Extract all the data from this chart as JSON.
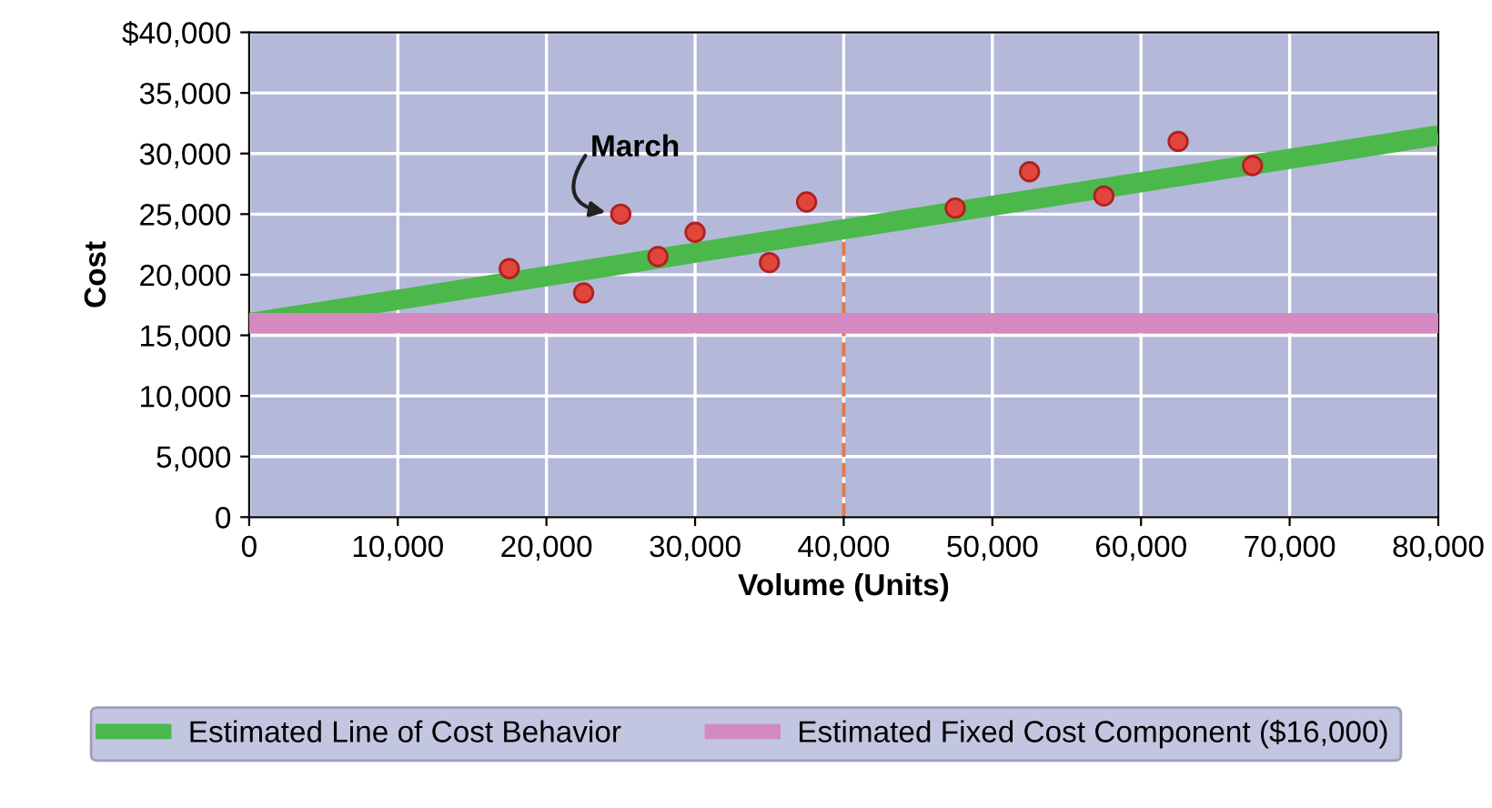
{
  "chart_data": {
    "type": "line",
    "xlabel": "Volume (Units)",
    "ylabel": "Cost",
    "xlim": [
      0,
      80000
    ],
    "ylim": [
      0,
      40000
    ],
    "xticks": [
      0,
      {
        "value": 10000,
        "label": "10,000"
      },
      {
        "value": 20000,
        "label": "20,000"
      },
      {
        "value": 30000,
        "label": "30,000"
      },
      {
        "value": 40000,
        "label": "40,000"
      },
      {
        "value": 50000,
        "label": "50,000"
      },
      {
        "value": 60000,
        "label": "60,000"
      },
      {
        "value": 70000,
        "label": "70,000"
      },
      {
        "value": 80000,
        "label": "80,000"
      }
    ],
    "yticks": [
      0,
      {
        "value": 5000,
        "label": "5,000"
      },
      {
        "value": 10000,
        "label": "10,000"
      },
      {
        "value": 15000,
        "label": "15,000"
      },
      {
        "value": 20000,
        "label": "20,000"
      },
      {
        "value": 25000,
        "label": "25,000"
      },
      {
        "value": 30000,
        "label": "30,000"
      },
      {
        "value": 35000,
        "label": "35,000"
      },
      {
        "value": 40000,
        "label": "$40,000"
      }
    ],
    "grid": true,
    "legend": "bottom",
    "series": [
      {
        "type": "scatter",
        "marker": "circle",
        "color": "#e0463c",
        "x": [
          17500,
          22500,
          25000,
          27500,
          30000,
          35000,
          37500,
          47500,
          52500,
          57500,
          62500,
          67500
        ],
        "values": [
          20500,
          18500,
          25000,
          21500,
          23500,
          21000,
          26000,
          25500,
          28500,
          26500,
          31000,
          29000
        ]
      },
      {
        "name": "Estimated Line of Cost Behavior",
        "color": "#4cb84c",
        "x": [
          0,
          80000
        ],
        "values": [
          16000,
          31500
        ]
      },
      {
        "name": "Estimated Fixed Cost Component ($16,000)",
        "color": "#d48ac0",
        "x": [
          0,
          80000
        ],
        "values": [
          16000,
          16000
        ]
      }
    ],
    "ref_lines": [
      {
        "axis": "x",
        "value": 40000,
        "color": "#e07a50",
        "line_style": "dashed"
      }
    ],
    "annotations": [
      {
        "text": "March",
        "x": 25000,
        "y": 25000
      }
    ]
  }
}
